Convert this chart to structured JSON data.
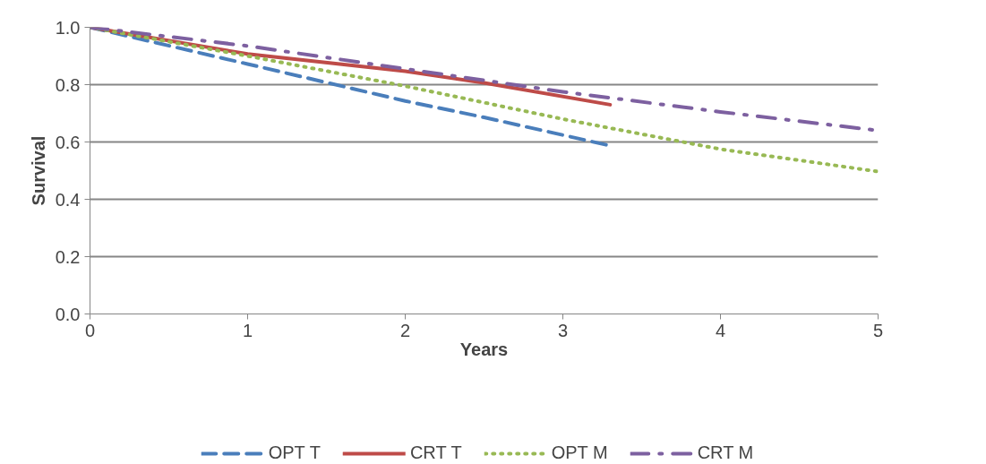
{
  "chart_data": {
    "type": "line",
    "xlabel": "Years",
    "ylabel": "Survival",
    "xlim": [
      0,
      5
    ],
    "xticks": [
      0,
      1,
      2,
      3,
      4,
      5
    ],
    "ylim": [
      0,
      1
    ],
    "yticks": [
      {
        "value": 0,
        "label": "0.0"
      },
      {
        "value": 0.2,
        "label": "0.2"
      },
      {
        "value": 0.4,
        "label": "0.4"
      },
      {
        "value": 0.6,
        "label": "0.6"
      },
      {
        "value": 0.8,
        "label": "0.8"
      },
      {
        "value": 1,
        "label": "1.0"
      }
    ],
    "grid": "y",
    "legend": "bottom",
    "marker": "none",
    "series": [
      {
        "name": "OPT T",
        "color": "#4a7ebb",
        "line_style": "dashed",
        "x": [
          0,
          1,
          2,
          2.5,
          3.3
        ],
        "values": [
          1,
          0.872,
          0.743,
          0.686,
          0.587
        ]
      },
      {
        "name": "CRT T",
        "color": "#be4b48",
        "line_style": "solid",
        "x": [
          0,
          1,
          2,
          2.5,
          3.3
        ],
        "values": [
          1,
          0.907,
          0.847,
          0.806,
          0.73
        ]
      },
      {
        "name": "OPT M",
        "color": "#98b954",
        "line_style": "dotted",
        "x": [
          0,
          1,
          2,
          3,
          4,
          5
        ],
        "values": [
          1,
          0.9,
          0.795,
          0.68,
          0.575,
          0.497
        ]
      },
      {
        "name": "CRT M",
        "color": "#7d60a0",
        "line_style": "dashdot",
        "x": [
          0,
          1,
          2,
          3,
          4,
          5
        ],
        "values": [
          1,
          0.935,
          0.855,
          0.775,
          0.705,
          0.64
        ]
      }
    ]
  }
}
